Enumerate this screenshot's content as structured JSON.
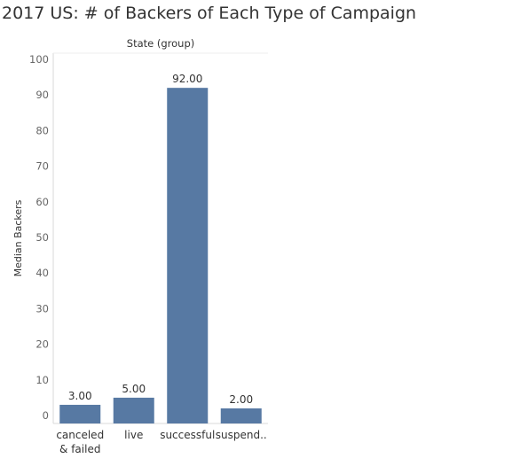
{
  "chart_data": {
    "type": "bar",
    "title": "2017 US: # of Backers of Each Type of Campaign",
    "column_header": "State (group)",
    "xlabel": "",
    "ylabel": "Median Backers",
    "categories": [
      [
        "canceled",
        "& failed"
      ],
      [
        "live"
      ],
      [
        "successful"
      ],
      [
        "suspend.."
      ]
    ],
    "values": [
      3,
      5,
      92,
      2
    ],
    "value_labels": [
      "3.00",
      "5.00",
      "92.00",
      "2.00"
    ],
    "yticks": [
      0,
      10,
      20,
      30,
      40,
      50,
      60,
      70,
      80,
      90,
      100
    ],
    "ylim": [
      0,
      100
    ],
    "grid": false,
    "colors": {
      "bar": "#5779a3",
      "text": "#333333",
      "tick": "#666666",
      "axis": "#d9d9d9"
    }
  }
}
